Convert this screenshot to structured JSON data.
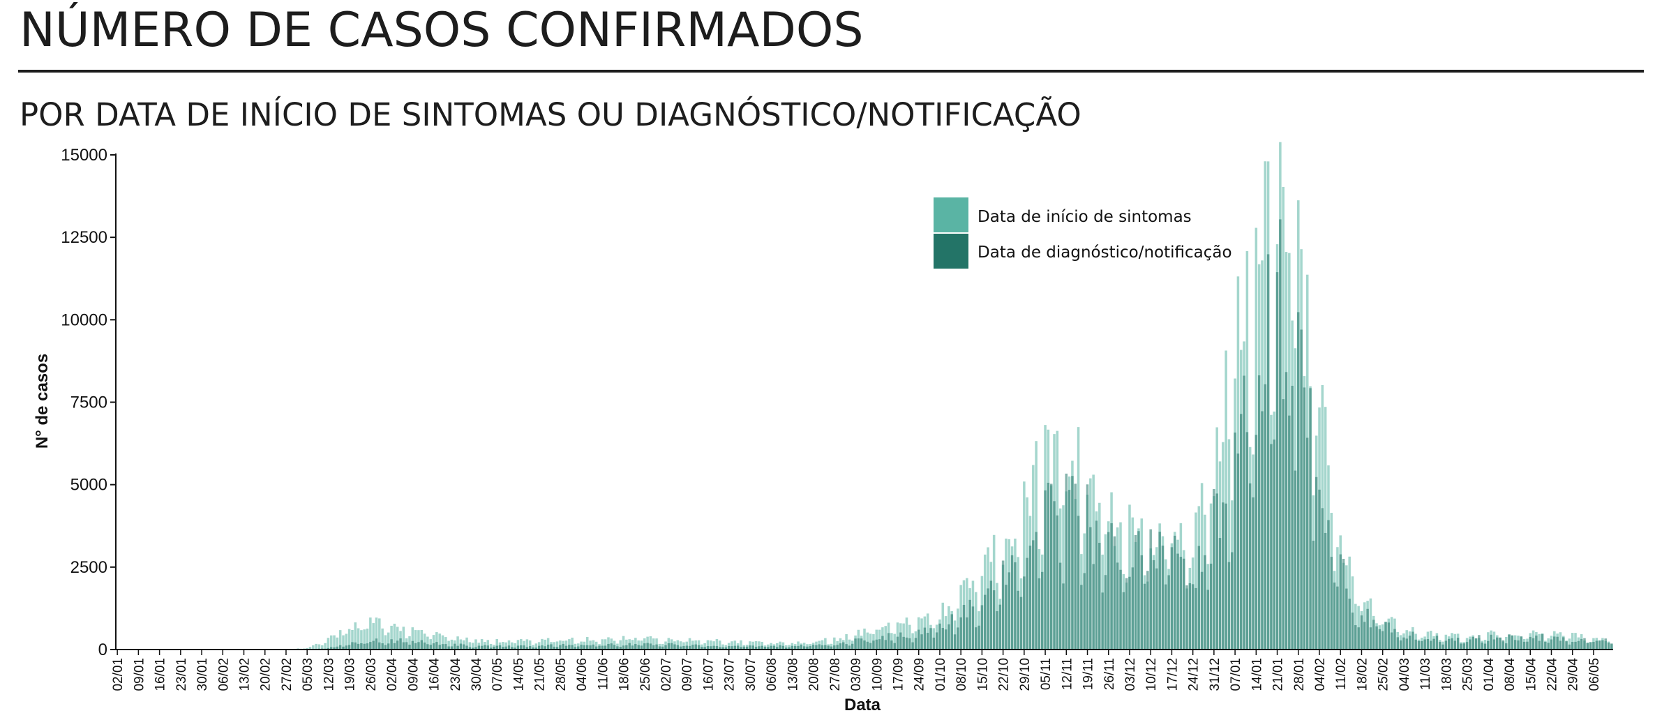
{
  "header": {
    "title": "NÚMERO DE CASOS CONFIRMADOS",
    "subtitle": "POR DATA DE INÍCIO DE SINTOMAS OU DIAGNÓSTICO/NOTIFICAÇÃO"
  },
  "colors": {
    "symptom_onset": "#5ab4a4",
    "diagnosis": "#237467",
    "axis": "#111111"
  },
  "chart_data": {
    "type": "bar",
    "title": "",
    "xlabel": "Data",
    "ylabel": "N° de casos",
    "ylim": [
      0,
      15000
    ],
    "yticks": [
      0,
      2500,
      5000,
      7500,
      10000,
      12500,
      15000
    ],
    "x_tick_labels": [
      "02/01",
      "09/01",
      "16/01",
      "23/01",
      "30/01",
      "06/02",
      "13/02",
      "20/02",
      "27/02",
      "05/03",
      "12/03",
      "19/03",
      "26/03",
      "02/04",
      "09/04",
      "16/04",
      "23/04",
      "30/04",
      "07/05",
      "14/05",
      "21/05",
      "28/05",
      "04/06",
      "11/06",
      "18/06",
      "25/06",
      "02/07",
      "09/07",
      "16/07",
      "23/07",
      "30/07",
      "06/08",
      "13/08",
      "20/08",
      "27/08",
      "03/09",
      "10/09",
      "17/09",
      "24/09",
      "01/10",
      "08/10",
      "15/10",
      "22/10",
      "29/10",
      "05/11",
      "12/11",
      "19/11",
      "26/11",
      "03/12",
      "10/12",
      "17/12",
      "24/12",
      "31/12",
      "07/01",
      "14/01",
      "21/01",
      "28/01",
      "04/02",
      "11/02",
      "18/02",
      "25/02",
      "04/03",
      "11/03",
      "18/03",
      "25/03",
      "01/04",
      "08/04",
      "15/04",
      "22/04",
      "29/04",
      "06/05"
    ],
    "legend": {
      "placement": "top-center",
      "entries": [
        "Data de início de sintomas",
        "Data de diagnóstico/notificação"
      ]
    },
    "series": [
      {
        "name": "Data de início de sintomas",
        "weekly_values": [
          0,
          0,
          0,
          0,
          0,
          0,
          0,
          0,
          0,
          50,
          300,
          600,
          800,
          700,
          550,
          450,
          350,
          250,
          250,
          250,
          250,
          300,
          300,
          300,
          350,
          350,
          300,
          300,
          250,
          250,
          200,
          200,
          200,
          250,
          300,
          450,
          650,
          700,
          800,
          1000,
          1600,
          2300,
          3000,
          4000,
          5500,
          5500,
          5000,
          4000,
          3500,
          3500,
          3500,
          3000,
          5500,
          8500,
          10500,
          13500,
          11500,
          7000,
          3000,
          1400,
          900,
          600,
          450,
          400,
          400,
          450,
          450,
          450,
          450,
          400,
          300
        ]
      },
      {
        "name": "Data de diagnóstico/notificação",
        "weekly_values": [
          0,
          0,
          0,
          0,
          0,
          0,
          0,
          0,
          0,
          0,
          50,
          150,
          250,
          250,
          250,
          200,
          150,
          100,
          100,
          100,
          100,
          150,
          150,
          150,
          150,
          150,
          150,
          150,
          100,
          100,
          100,
          100,
          100,
          150,
          150,
          250,
          350,
          400,
          450,
          600,
          1000,
          1400,
          2000,
          2500,
          3800,
          4000,
          3700,
          3000,
          2700,
          2700,
          2700,
          2300,
          3700,
          6000,
          7500,
          10000,
          9000,
          5500,
          2200,
          1000,
          700,
          450,
          350,
          300,
          300,
          350,
          350,
          350,
          350,
          300,
          250
        ]
      }
    ]
  }
}
